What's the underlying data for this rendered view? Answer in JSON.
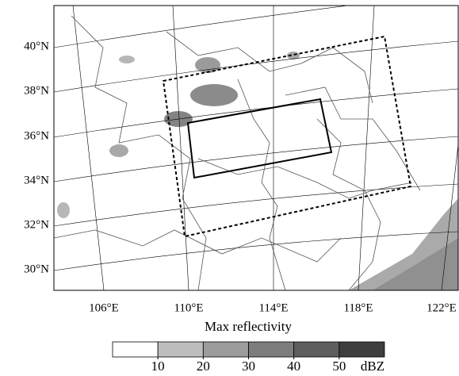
{
  "map": {
    "lat_labels": [
      "40°N",
      "38°N",
      "36°N",
      "34°N",
      "32°N",
      "30°N"
    ],
    "lon_labels": [
      "106°E",
      "110°E",
      "114°E",
      "118°E",
      "122°E"
    ]
  },
  "colorbar": {
    "title": "Max reflectivity",
    "ticks": [
      10,
      20,
      30,
      40,
      50
    ],
    "unit": "dBZ",
    "colors": [
      "#ffffff",
      "#bdbdbd",
      "#9c9c9c",
      "#7d7d7d",
      "#5e5e5e",
      "#3e3e3e"
    ]
  }
}
